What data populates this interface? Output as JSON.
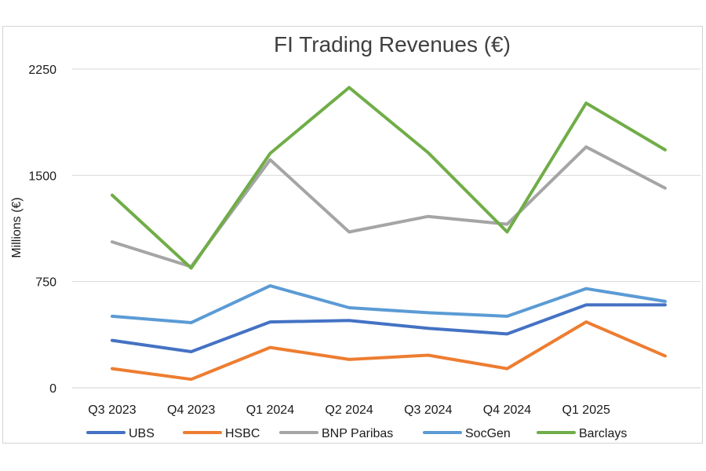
{
  "chart_data": {
    "type": "line",
    "title": "FI Trading Revenues (€)",
    "ylabel": "Millions (€)",
    "xlabel": "",
    "ylim": [
      0,
      2250
    ],
    "yticks": [
      0,
      750,
      1500,
      2250
    ],
    "grid": true,
    "legend": "bottom",
    "x_tick_labels": [
      "Q3 2023",
      "Q4 2023",
      "Q1 2024",
      "Q2 2024",
      "Q3 2024",
      "Q4 2024",
      "Q1 2025"
    ],
    "categories": [
      "Q3 2023",
      "Q4 2023",
      "Q1 2024",
      "Q2 2024",
      "Q3 2024",
      "Q4 2024",
      "Q1 2025",
      ""
    ],
    "series": [
      {
        "name": "UBS",
        "color": "#4472C4",
        "values": [
          335,
          255,
          465,
          475,
          420,
          380,
          585,
          585
        ]
      },
      {
        "name": "HSBC",
        "color": "#ED7D31",
        "values": [
          135,
          60,
          285,
          200,
          230,
          135,
          465,
          225
        ]
      },
      {
        "name": "BNP Paribas",
        "color": "#A5A5A5",
        "values": [
          1030,
          855,
          1610,
          1100,
          1210,
          1155,
          1700,
          1410
        ]
      },
      {
        "name": "SocGen",
        "color": "#5B9BD5",
        "values": [
          505,
          460,
          720,
          565,
          530,
          505,
          700,
          610
        ]
      },
      {
        "name": "Barclays",
        "color": "#70AD47",
        "values": [
          1360,
          845,
          1655,
          2120,
          1660,
          1100,
          2010,
          1680
        ]
      }
    ]
  }
}
